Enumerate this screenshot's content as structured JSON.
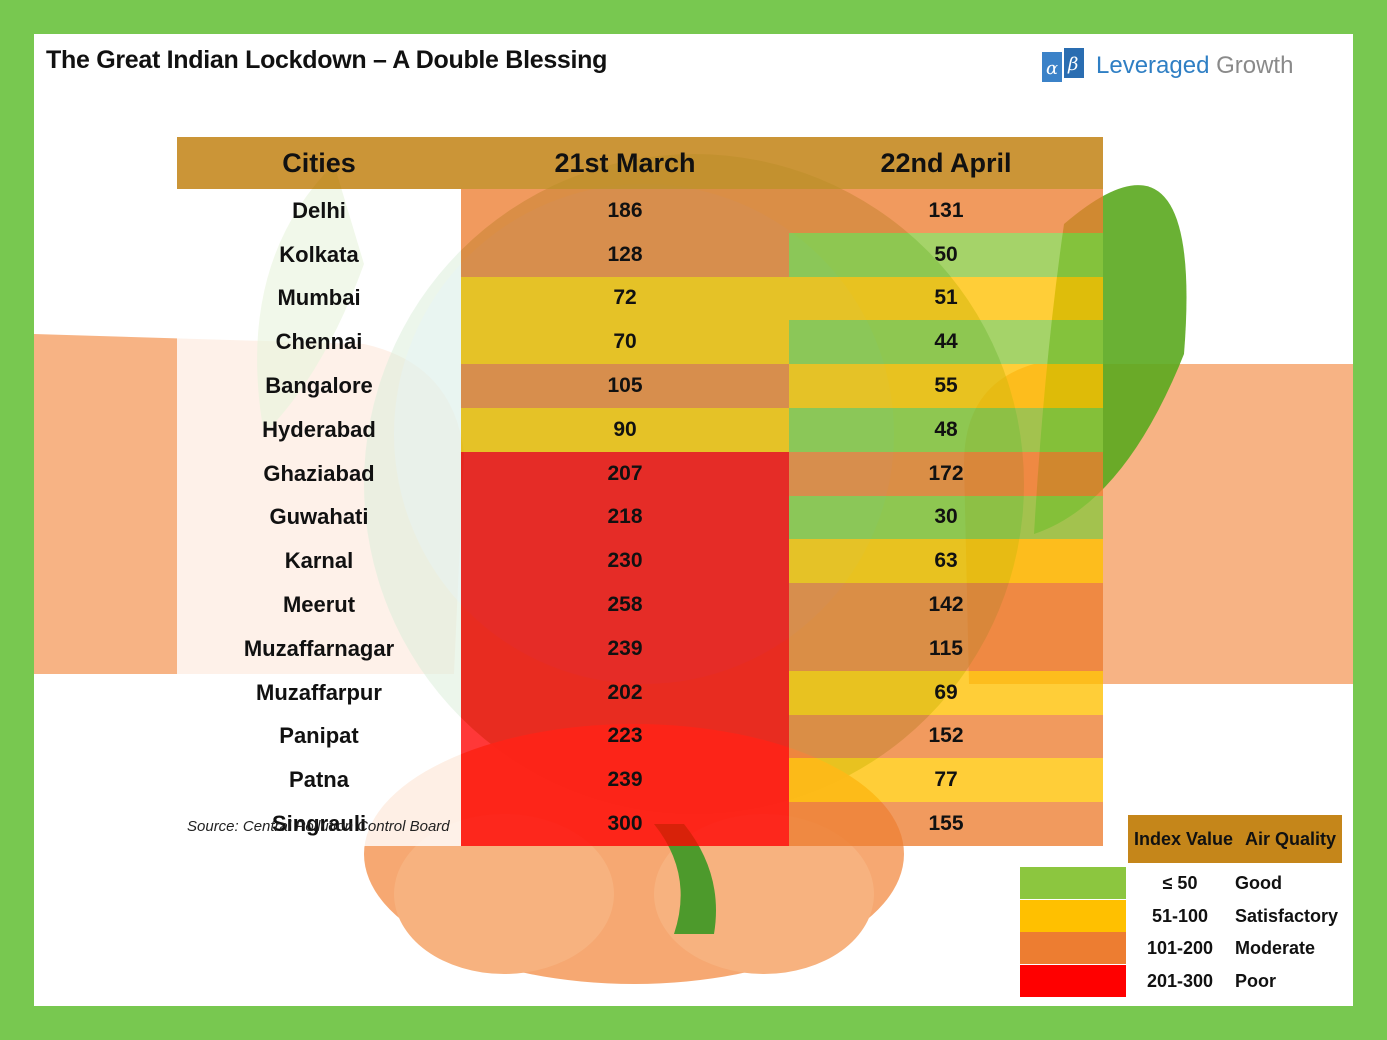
{
  "header": {
    "title": "The Great Indian Lockdown – A Double Blessing",
    "brand_part1": "Leveraged ",
    "brand_part2": "Growth"
  },
  "chart_data": {
    "type": "table",
    "columns": [
      "Cities",
      "21st March",
      "22nd April"
    ],
    "rows": [
      {
        "city": "Delhi",
        "march": 186,
        "april": 131
      },
      {
        "city": "Kolkata",
        "march": 128,
        "april": 50
      },
      {
        "city": "Mumbai",
        "march": 72,
        "april": 51
      },
      {
        "city": "Chennai",
        "march": 70,
        "april": 44
      },
      {
        "city": "Bangalore",
        "march": 105,
        "april": 55
      },
      {
        "city": "Hyderabad",
        "march": 90,
        "april": 48
      },
      {
        "city": "Ghaziabad",
        "march": 207,
        "april": 172
      },
      {
        "city": "Guwahati",
        "march": 218,
        "april": 30
      },
      {
        "city": "Karnal",
        "march": 230,
        "april": 63
      },
      {
        "city": "Meerut",
        "march": 258,
        "april": 142
      },
      {
        "city": "Muzaffarnagar",
        "march": 239,
        "april": 115
      },
      {
        "city": "Muzaffarpur",
        "march": 202,
        "april": 69
      },
      {
        "city": "Panipat",
        "march": 223,
        "april": 152
      },
      {
        "city": "Patna",
        "march": 239,
        "april": 77
      },
      {
        "city": "Singrauli",
        "march": 300,
        "april": 155
      }
    ],
    "source": "Source: Central Pollution Control Board",
    "legend": {
      "header": [
        "Index Value",
        "Air Quality"
      ],
      "items": [
        {
          "range": "≤ 50",
          "label": "Good",
          "color": "#8cc63f"
        },
        {
          "range": "51-100",
          "label": "Satisfactory",
          "color": "#ffc000"
        },
        {
          "range": "101-200",
          "label": "Moderate",
          "color": "#ed7d31"
        },
        {
          "range": "201-300",
          "label": "Poor",
          "color": "#ff0000"
        }
      ]
    }
  },
  "colors": {
    "frame": "#78c850",
    "header": "#c78c26",
    "good": "#8cc63f",
    "satisfactory": "#ffc000",
    "moderate": "#ed7d31",
    "poor": "#ff0000"
  }
}
